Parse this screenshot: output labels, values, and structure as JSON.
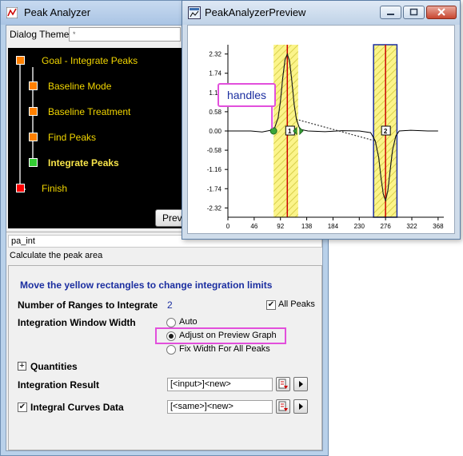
{
  "main_window": {
    "title": "Peak Analyzer",
    "dialog_theme_label": "Dialog Theme",
    "dialog_theme_value": "*",
    "flow_steps": [
      {
        "label": "Goal - Integrate Peaks",
        "color": "#ff8000"
      },
      {
        "label": "Baseline Mode",
        "color": "#ff8000"
      },
      {
        "label": "Baseline Treatment",
        "color": "#ff8000"
      },
      {
        "label": "Find Peaks",
        "color": "#ff8000"
      },
      {
        "label": "Integrate Peaks",
        "color": "#33cc33",
        "current": true
      },
      {
        "label": "Finish",
        "color": "#ff0000"
      }
    ],
    "preview_button": "Prev",
    "page_name": "pa_int",
    "page_description": "Calculate the peak area",
    "settings": {
      "instruction": "Move the yellow rectangles to change integration limits",
      "ranges_label": "Number of Ranges to Integrate",
      "ranges_value": "2",
      "all_peaks_label": "All Peaks",
      "all_peaks_checked": true,
      "window_width_label": "Integration Window Width",
      "window_options": [
        "Auto",
        "Adjust on Preview Graph",
        "Fix Width For All Peaks"
      ],
      "window_selected": "Adjust on Preview Graph",
      "quantities_label": "Quantities",
      "integration_result_label": "Integration Result",
      "integration_result_value": "[<input>]<new>",
      "integral_curves_label": "Integral Curves Data",
      "integral_curves_checked": true,
      "integral_curves_value": "[<same>]<new>"
    }
  },
  "preview_window": {
    "title": "PeakAnalyzerPreview",
    "callout": "handles",
    "highlight_color": "#e24fdc"
  },
  "chart_data": {
    "type": "line",
    "xlim": [
      0,
      378
    ],
    "ylim": [
      -2.6,
      2.6
    ],
    "xticks": [
      "0",
      "46",
      "92",
      "138",
      "184",
      "230",
      "276",
      "322",
      "368"
    ],
    "yticks": [
      "2.32",
      "1.74",
      "1.16",
      "0.58",
      "0.00",
      "-0.58",
      "-1.16",
      "-1.74",
      "-2.32"
    ],
    "ranges": [
      {
        "label": "1",
        "x_start": 80,
        "x_end": 123,
        "center": 104
      },
      {
        "label": "2",
        "x_start": 255,
        "x_end": 296,
        "center": 276
      }
    ],
    "series": [
      {
        "x": [
          0,
          40,
          60,
          75,
          82,
          88,
          92,
          96,
          100,
          104,
          108,
          112,
          116,
          120,
          126,
          140,
          170,
          200,
          230,
          250,
          258,
          264,
          268,
          272,
          276,
          280,
          284,
          288,
          294,
          300,
          320,
          350,
          368
        ],
        "y": [
          0.0,
          0.0,
          -0.03,
          0.02,
          0.1,
          0.4,
          0.9,
          1.6,
          2.15,
          2.32,
          2.1,
          1.5,
          0.8,
          0.35,
          0.05,
          0.0,
          -0.02,
          0.01,
          0.0,
          -0.05,
          -0.3,
          -0.8,
          -1.4,
          -1.9,
          -2.1,
          -1.8,
          -1.2,
          -0.6,
          -0.15,
          0.0,
          0.02,
          0.0,
          0.0
        ]
      }
    ]
  }
}
